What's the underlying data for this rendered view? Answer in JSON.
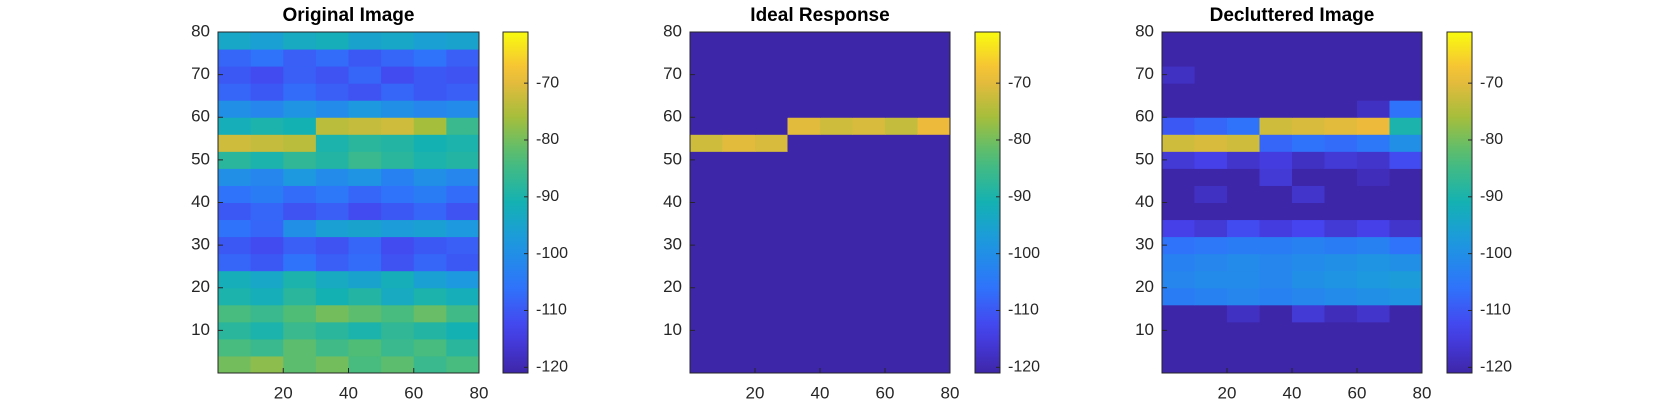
{
  "chart_data": [
    {
      "type": "heatmap",
      "title": "Original Image",
      "colormap": "parula",
      "xlim": [
        0,
        80
      ],
      "ylim": [
        0,
        80
      ],
      "xticks": [
        20,
        40,
        60,
        80
      ],
      "yticks": [
        10,
        20,
        30,
        40,
        50,
        60,
        70,
        80
      ],
      "clim": [
        -121,
        -61
      ],
      "cticks": [
        -120,
        -110,
        -100,
        -90,
        -80,
        -70
      ],
      "z": [
        [
          -80,
          -78,
          -82,
          -80,
          -84,
          -82,
          -86,
          -84
        ],
        [
          -84,
          -86,
          -82,
          -85,
          -83,
          -86,
          -84,
          -88
        ],
        [
          -88,
          -90,
          -86,
          -88,
          -90,
          -87,
          -89,
          -91
        ],
        [
          -84,
          -86,
          -83,
          -80,
          -82,
          -84,
          -81,
          -85
        ],
        [
          -90,
          -92,
          -88,
          -91,
          -89,
          -93,
          -90,
          -92
        ],
        [
          -92,
          -94,
          -90,
          -93,
          -95,
          -92,
          -96,
          -98
        ],
        [
          -108,
          -110,
          -106,
          -109,
          -107,
          -111,
          -108,
          -110
        ],
        [
          -110,
          -112,
          -109,
          -111,
          -108,
          -112,
          -110,
          -109
        ],
        [
          -106,
          -108,
          -100,
          -96,
          -95,
          -97,
          -96,
          -98
        ],
        [
          -110,
          -108,
          -111,
          -109,
          -112,
          -110,
          -108,
          -111
        ],
        [
          -106,
          -104,
          -107,
          -105,
          -108,
          -106,
          -104,
          -107
        ],
        [
          -100,
          -102,
          -98,
          -101,
          -99,
          -103,
          -100,
          -102
        ],
        [
          -88,
          -90,
          -87,
          -89,
          -86,
          -88,
          -90,
          -89
        ],
        [
          -72,
          -73,
          -74,
          -90,
          -88,
          -89,
          -91,
          -90
        ],
        [
          -92,
          -90,
          -91,
          -74,
          -73,
          -72,
          -76,
          -86
        ],
        [
          -100,
          -102,
          -99,
          -101,
          -98,
          -100,
          -102,
          -101
        ],
        [
          -108,
          -110,
          -107,
          -109,
          -111,
          -108,
          -110,
          -109
        ],
        [
          -110,
          -112,
          -109,
          -111,
          -108,
          -112,
          -110,
          -111
        ],
        [
          -108,
          -106,
          -109,
          -107,
          -110,
          -108,
          -106,
          -109
        ],
        [
          -94,
          -96,
          -93,
          -92,
          -95,
          -94,
          -96,
          -95
        ]
      ]
    },
    {
      "type": "heatmap",
      "title": "Ideal Response",
      "colormap": "parula",
      "xlim": [
        0,
        80
      ],
      "ylim": [
        0,
        80
      ],
      "xticks": [
        20,
        40,
        60,
        80
      ],
      "yticks": [
        10,
        20,
        30,
        40,
        50,
        60,
        70,
        80
      ],
      "clim": [
        -121,
        -61
      ],
      "cticks": [
        -120,
        -110,
        -100,
        -90,
        -80,
        -70
      ],
      "z": [
        [
          -121,
          -121,
          -121,
          -121,
          -121,
          -121,
          -121,
          -121
        ],
        [
          -121,
          -121,
          -121,
          -121,
          -121,
          -121,
          -121,
          -121
        ],
        [
          -121,
          -121,
          -121,
          -121,
          -121,
          -121,
          -121,
          -121
        ],
        [
          -121,
          -121,
          -121,
          -121,
          -121,
          -121,
          -121,
          -121
        ],
        [
          -121,
          -121,
          -121,
          -121,
          -121,
          -121,
          -121,
          -121
        ],
        [
          -121,
          -121,
          -121,
          -121,
          -121,
          -121,
          -121,
          -121
        ],
        [
          -121,
          -121,
          -121,
          -121,
          -121,
          -121,
          -121,
          -121
        ],
        [
          -121,
          -121,
          -121,
          -121,
          -121,
          -121,
          -121,
          -121
        ],
        [
          -121,
          -121,
          -121,
          -121,
          -121,
          -121,
          -121,
          -121
        ],
        [
          -121,
          -121,
          -121,
          -121,
          -121,
          -121,
          -121,
          -121
        ],
        [
          -121,
          -121,
          -121,
          -121,
          -121,
          -121,
          -121,
          -121
        ],
        [
          -121,
          -121,
          -121,
          -121,
          -121,
          -121,
          -121,
          -121
        ],
        [
          -121,
          -121,
          -121,
          -121,
          -121,
          -121,
          -121,
          -121
        ],
        [
          -72,
          -70,
          -71,
          -121,
          -121,
          -121,
          -121,
          -121
        ],
        [
          -121,
          -121,
          -121,
          -70,
          -72,
          -71,
          -73,
          -69
        ],
        [
          -121,
          -121,
          -121,
          -121,
          -121,
          -121,
          -121,
          -121
        ],
        [
          -121,
          -121,
          -121,
          -121,
          -121,
          -121,
          -121,
          -121
        ],
        [
          -121,
          -121,
          -121,
          -121,
          -121,
          -121,
          -121,
          -121
        ],
        [
          -121,
          -121,
          -121,
          -121,
          -121,
          -121,
          -121,
          -121
        ],
        [
          -121,
          -121,
          -121,
          -121,
          -121,
          -121,
          -121,
          -121
        ]
      ]
    },
    {
      "type": "heatmap",
      "title": "Decluttered Image",
      "colormap": "parula",
      "xlim": [
        0,
        80
      ],
      "ylim": [
        0,
        80
      ],
      "xticks": [
        20,
        40,
        60,
        80
      ],
      "yticks": [
        10,
        20,
        30,
        40,
        50,
        60,
        70,
        80
      ],
      "clim": [
        -121,
        -61
      ],
      "cticks": [
        -120,
        -110,
        -100,
        -90,
        -80,
        -70
      ],
      "z": [
        [
          -121,
          -121,
          -121,
          -121,
          -121,
          -121,
          -121,
          -121
        ],
        [
          -121,
          -121,
          -121,
          -121,
          -121,
          -121,
          -121,
          -121
        ],
        [
          -121,
          -121,
          -121,
          -121,
          -121,
          -121,
          -121,
          -121
        ],
        [
          -121,
          -121,
          -118,
          -121,
          -116,
          -119,
          -117,
          -121
        ],
        [
          -104,
          -103,
          -102,
          -103,
          -102,
          -101,
          -100,
          -99
        ],
        [
          -102,
          -101,
          -101,
          -102,
          -100,
          -99,
          -98,
          -97
        ],
        [
          -103,
          -102,
          -101,
          -102,
          -101,
          -100,
          -99,
          -100
        ],
        [
          -106,
          -105,
          -104,
          -104,
          -103,
          -104,
          -103,
          -106
        ],
        [
          -114,
          -116,
          -112,
          -115,
          -113,
          -116,
          -114,
          -117
        ],
        [
          -121,
          -121,
          -121,
          -121,
          -121,
          -121,
          -121,
          -121
        ],
        [
          -121,
          -118,
          -121,
          -121,
          -117,
          -121,
          -121,
          -121
        ],
        [
          -121,
          -121,
          -121,
          -116,
          -121,
          -121,
          -119,
          -121
        ],
        [
          -116,
          -114,
          -117,
          -115,
          -118,
          -116,
          -117,
          -112
        ],
        [
          -72,
          -71,
          -72,
          -108,
          -106,
          -107,
          -105,
          -100
        ],
        [
          -110,
          -108,
          -106,
          -72,
          -71,
          -70,
          -69,
          -90
        ],
        [
          -121,
          -121,
          -121,
          -121,
          -121,
          -121,
          -118,
          -106
        ],
        [
          -121,
          -121,
          -121,
          -121,
          -121,
          -121,
          -121,
          -121
        ],
        [
          -118,
          -121,
          -121,
          -121,
          -121,
          -121,
          -121,
          -121
        ],
        [
          -121,
          -121,
          -121,
          -121,
          -121,
          -121,
          -121,
          -121
        ],
        [
          -121,
          -121,
          -121,
          -121,
          -121,
          -121,
          -121,
          -121
        ]
      ]
    }
  ]
}
